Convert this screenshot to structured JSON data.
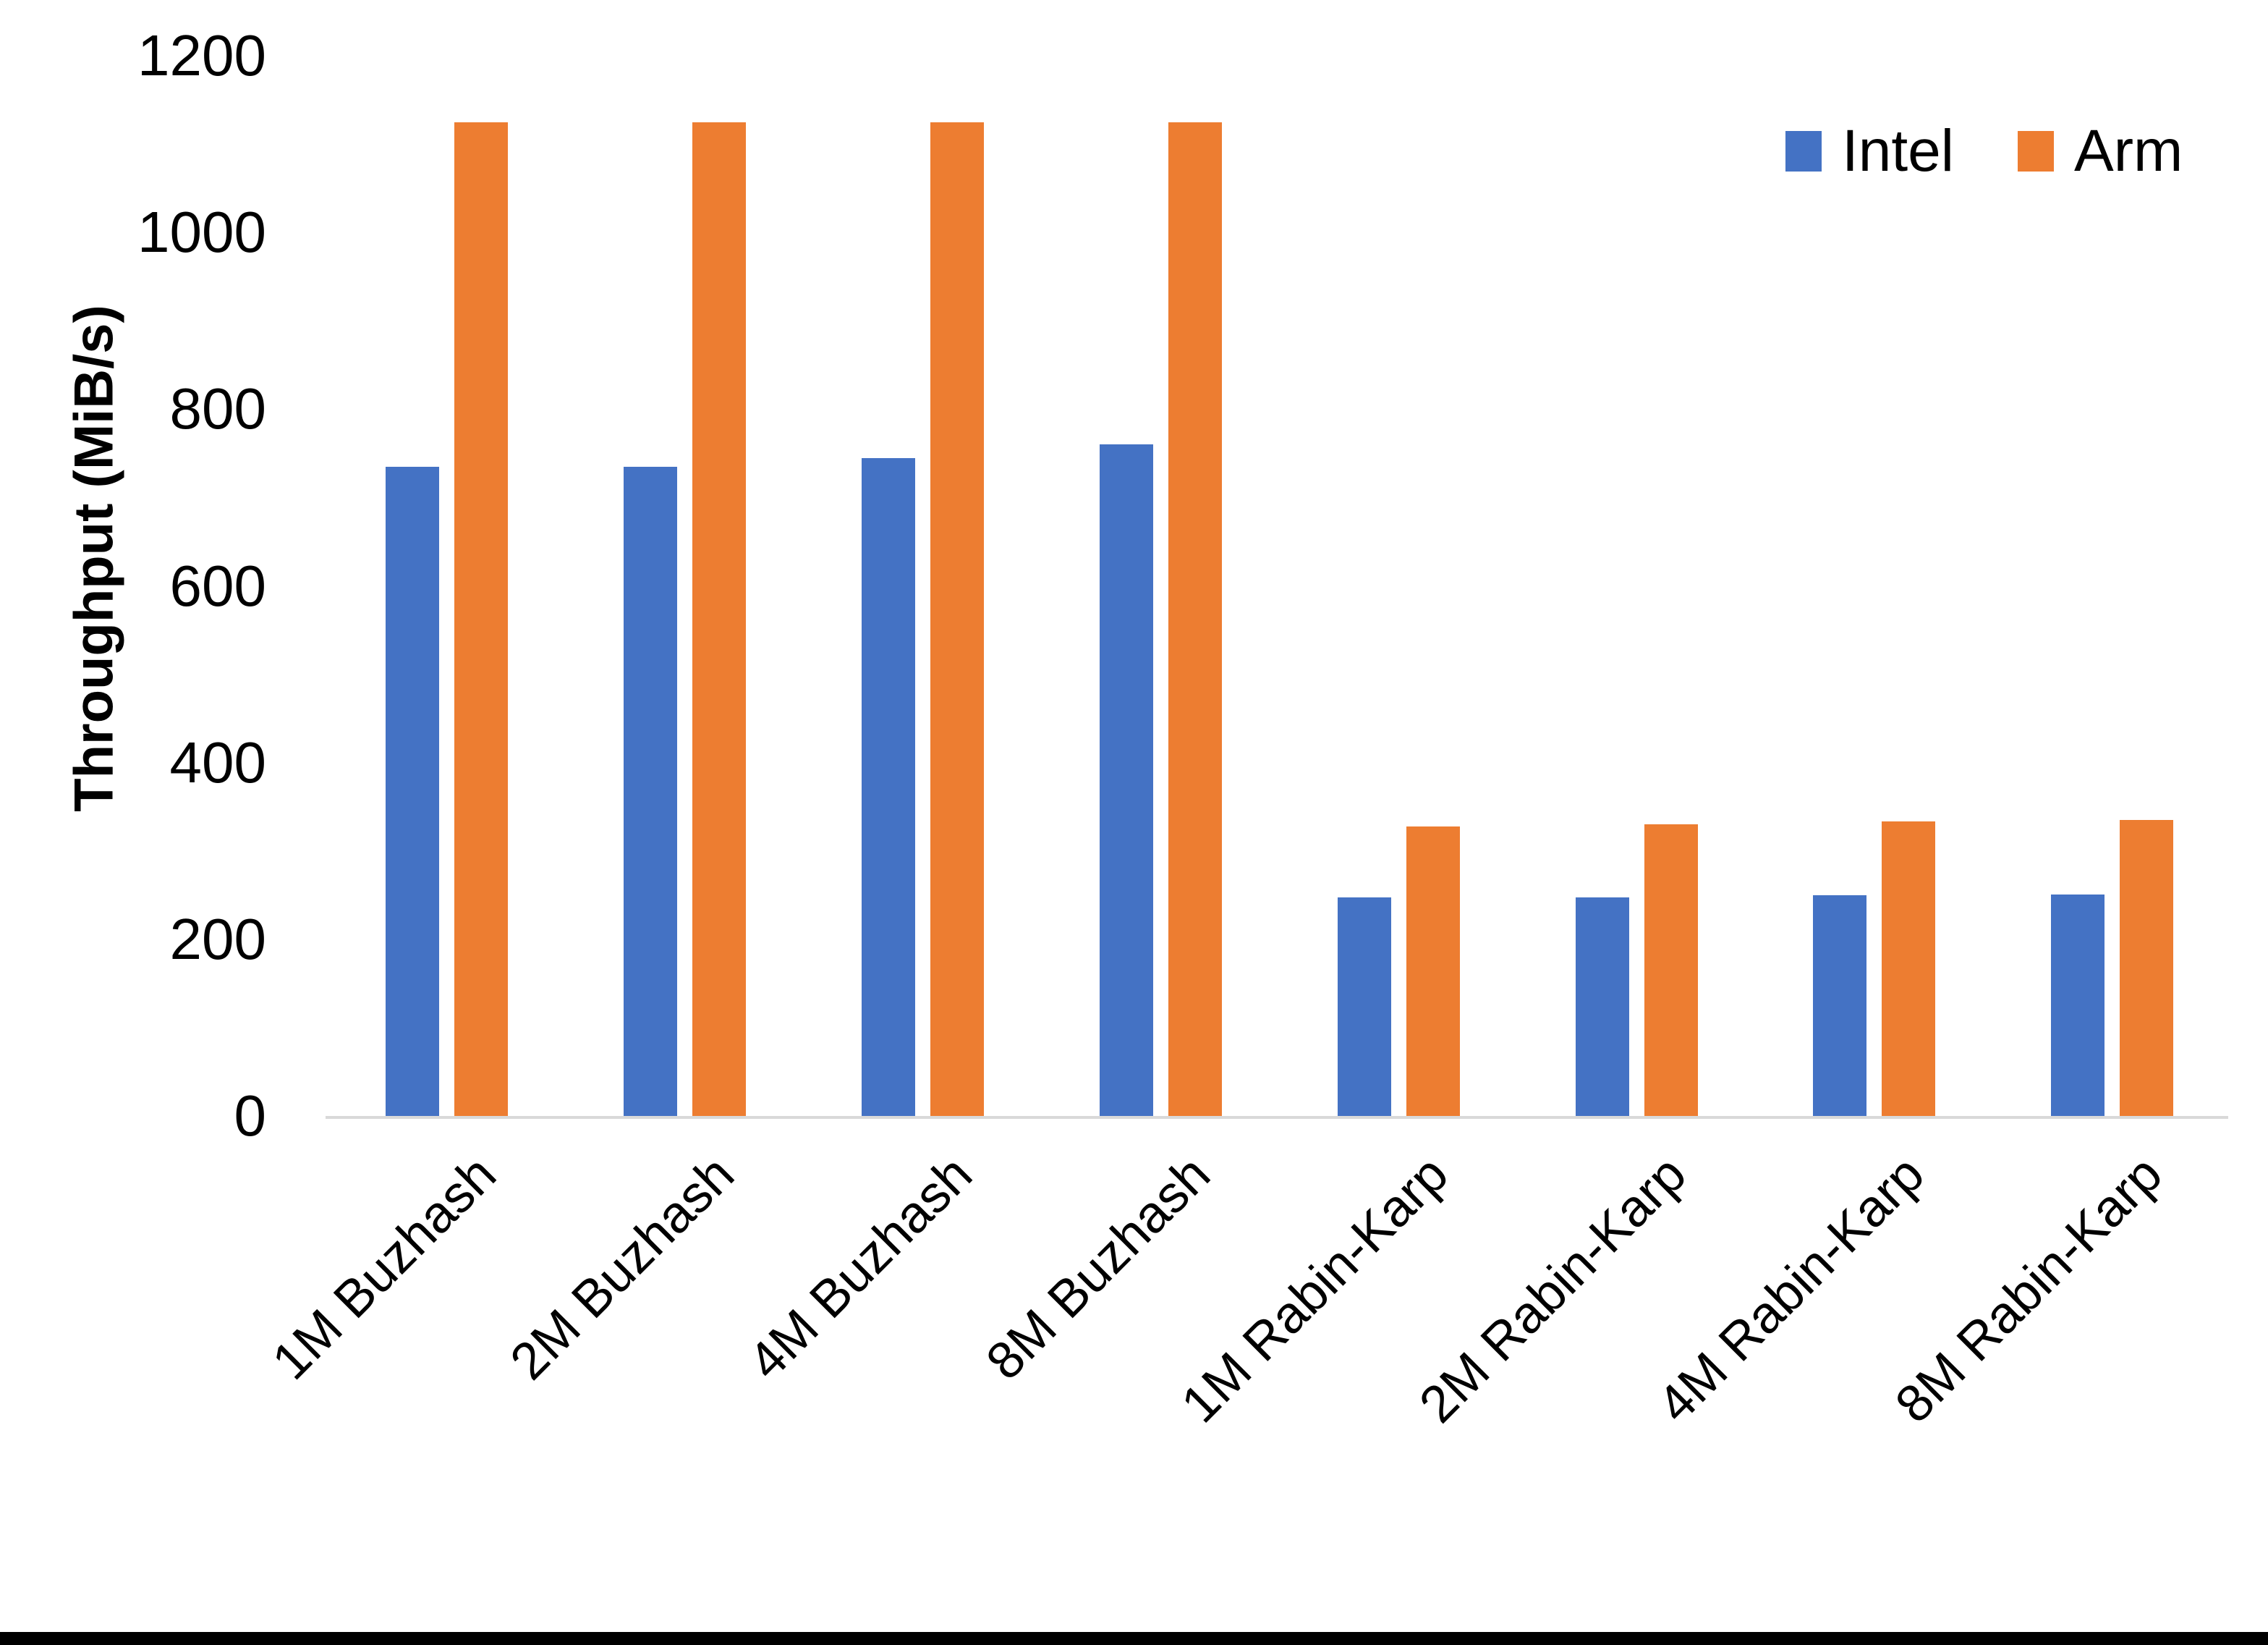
{
  "chart_data": {
    "type": "bar",
    "title": "",
    "xlabel": "",
    "ylabel": "Throughput (MiB/s)",
    "ylim": [
      0,
      1200
    ],
    "yticks": [
      0,
      200,
      400,
      600,
      800,
      1000,
      1200
    ],
    "grid": false,
    "legend_position": "top-right",
    "categories": [
      "1M Buzhash",
      "2M Buzhash",
      "4M Buzhash",
      "8M Buzhash",
      "1M Rabin-Karp",
      "2M Rabin-Karp",
      "4M Rabin-Karp",
      "8M Rabin-Karp"
    ],
    "series": [
      {
        "name": "Intel",
        "color": "#4472C4",
        "values": [
          735,
          735,
          745,
          760,
          247,
          247,
          250,
          251
        ]
      },
      {
        "name": "Arm",
        "color": "#ED7D31",
        "values": [
          1125,
          1125,
          1125,
          1125,
          328,
          330,
          333,
          335
        ]
      }
    ]
  },
  "colors": {
    "background": "#FFFFFF",
    "axis_line": "#D9D9D9",
    "text": "#000000",
    "bottom_border": "#000000"
  }
}
